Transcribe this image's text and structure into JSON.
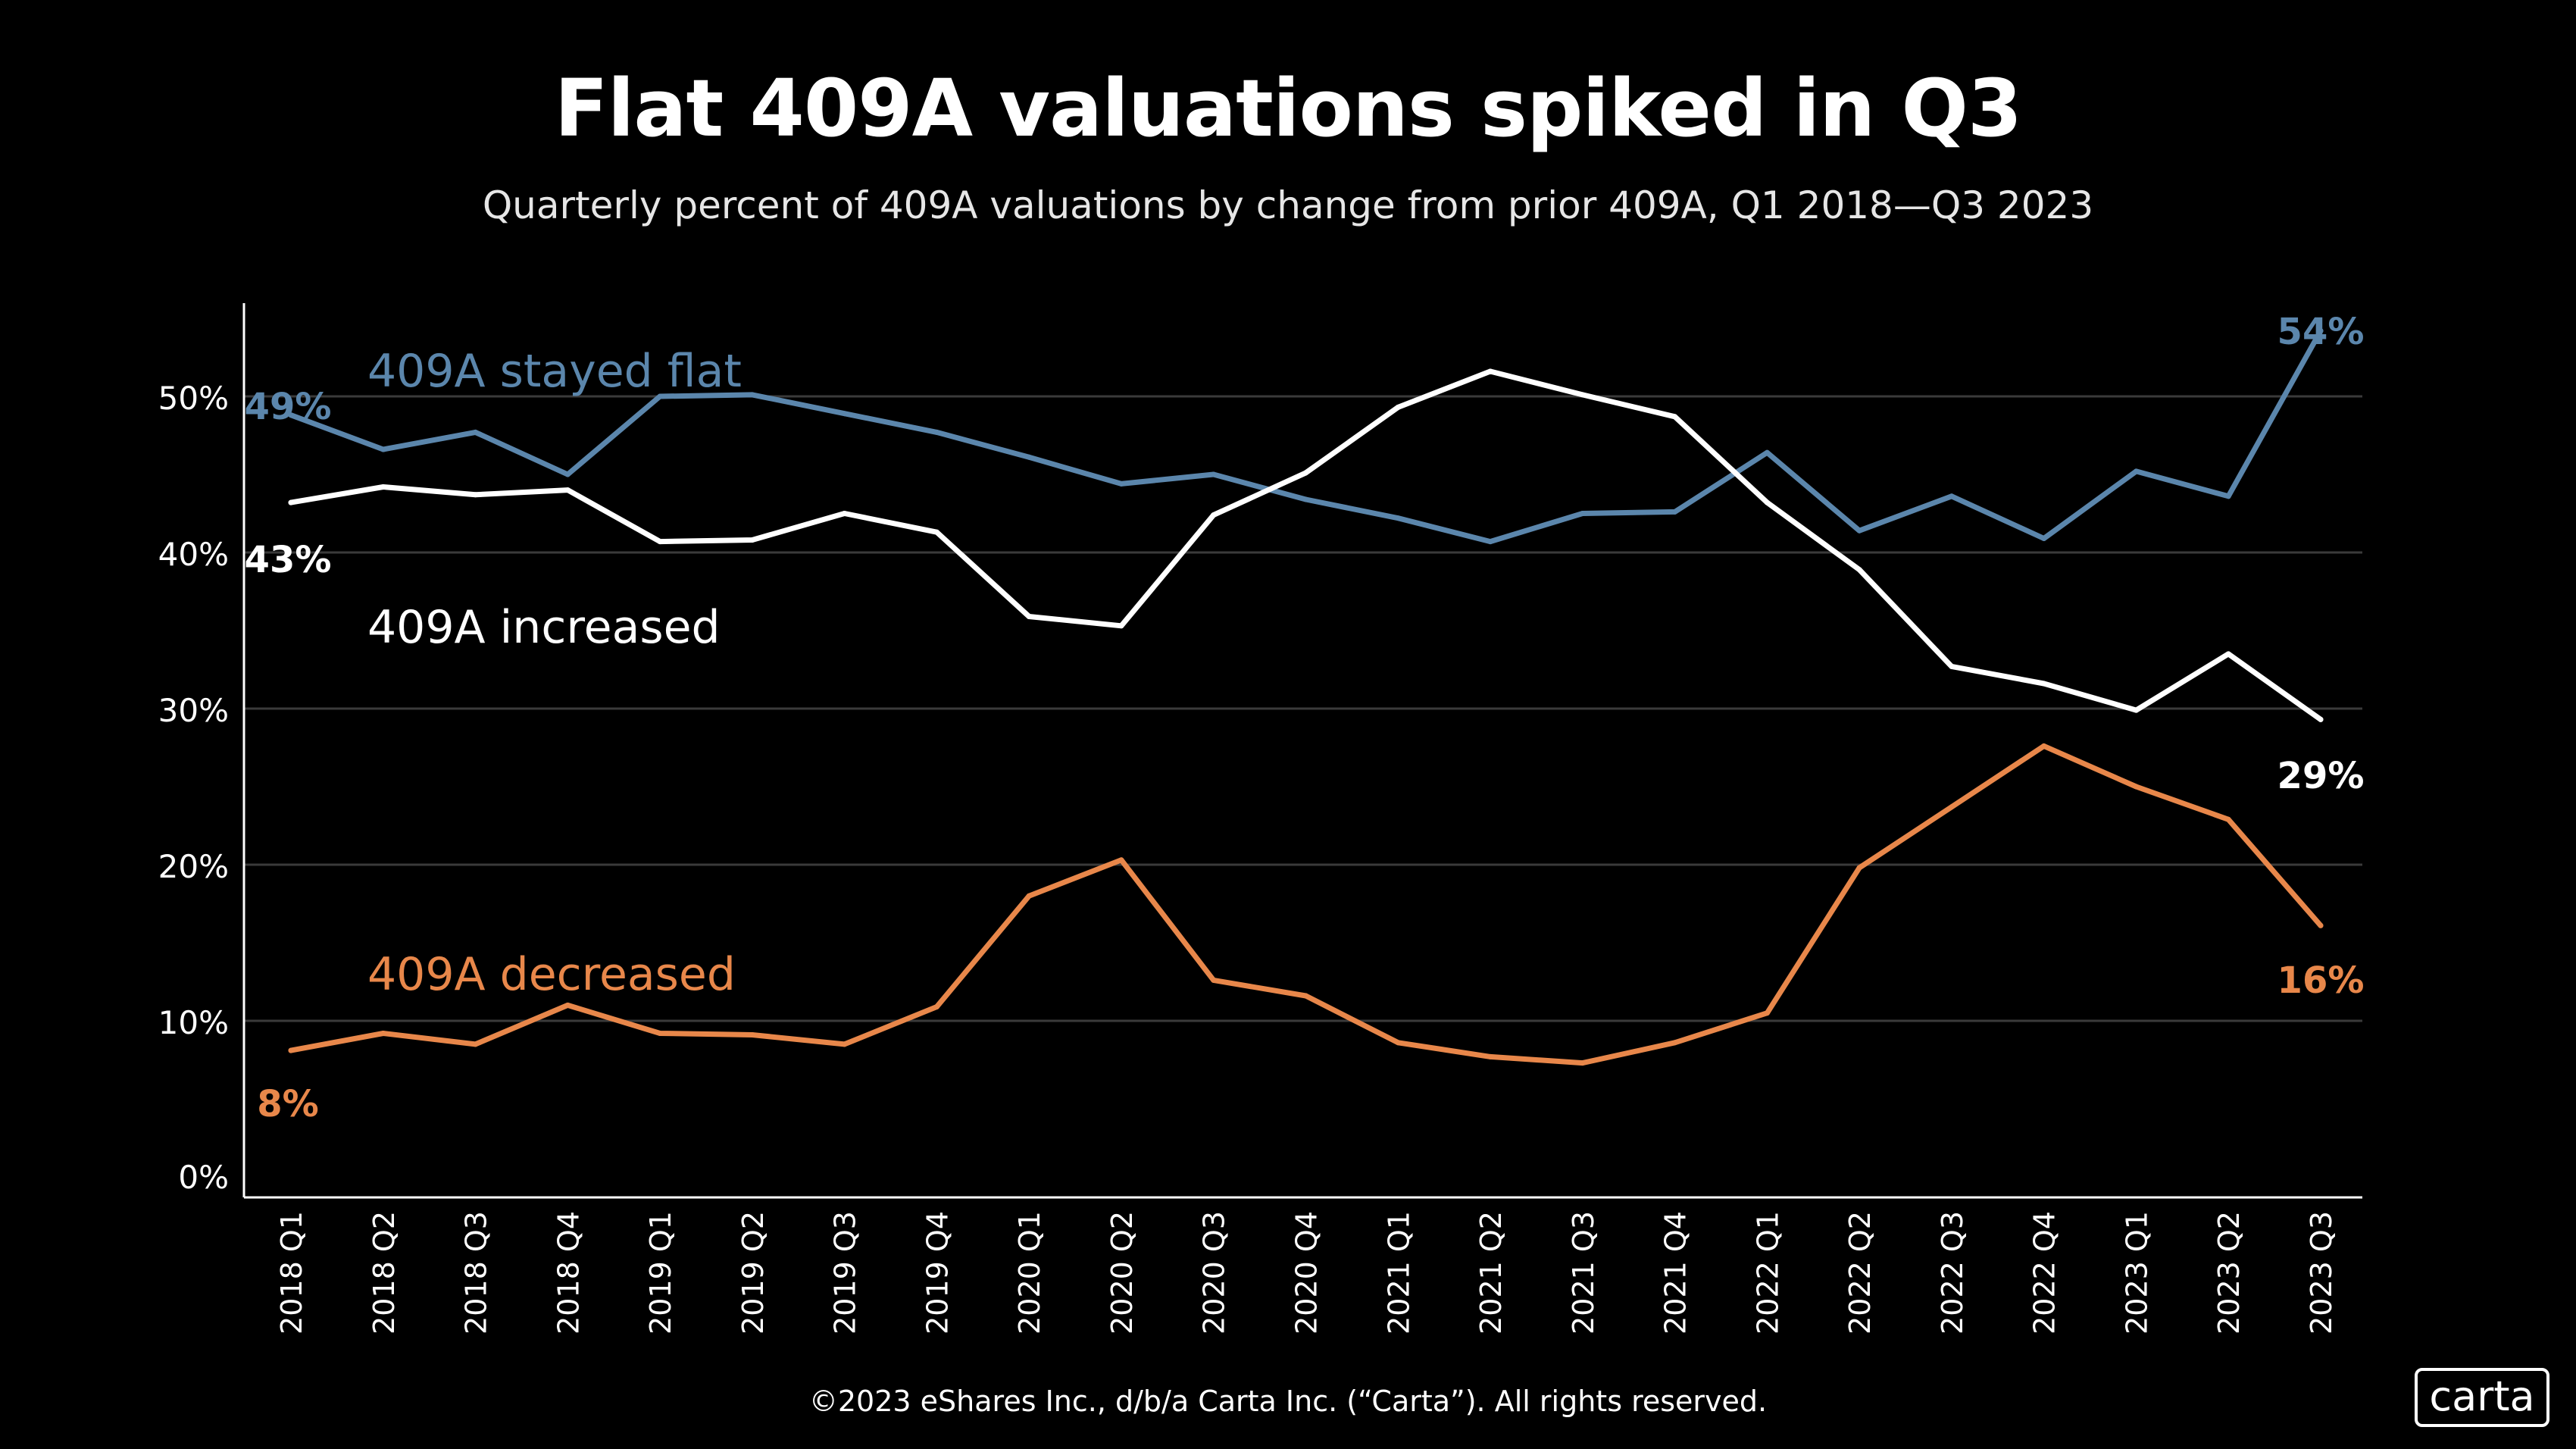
{
  "header": {
    "title": "Flat 409A valuations spiked in Q3",
    "subtitle": "Quarterly percent of 409A valuations by change from prior 409A, Q1 2018—Q3 2023"
  },
  "footer": {
    "copyright": "©2023 eShares Inc., d/b/a Carta Inc. (“Carta”). All rights reserved.",
    "logo_text": "carta"
  },
  "colors": {
    "background": "#000000",
    "flat": "#5b86ac",
    "increased": "#ffffff",
    "decreased": "#e8874a",
    "grid": "#3a3a3a",
    "axis": "#ffffff"
  },
  "chart_data": {
    "type": "line",
    "title": "Flat 409A valuations spiked in Q3",
    "subtitle": "Quarterly percent of 409A valuations by change from prior 409A, Q1 2018—Q3 2023",
    "xlabel": "",
    "ylabel": "",
    "ylim": [
      0,
      57
    ],
    "y_ticks": [
      0,
      10,
      20,
      30,
      40,
      50
    ],
    "y_tick_labels": [
      "0%",
      "10%",
      "20%",
      "30%",
      "40%",
      "50%"
    ],
    "grid": true,
    "categories": [
      "2018 Q1",
      "2018 Q2",
      "2018 Q3",
      "2018 Q4",
      "2019 Q1",
      "2019 Q2",
      "2019 Q3",
      "2019 Q4",
      "2020 Q1",
      "2020 Q2",
      "2020 Q3",
      "2020 Q4",
      "2021 Q1",
      "2021 Q2",
      "2021 Q3",
      "2021 Q4",
      "2022 Q1",
      "2022 Q2",
      "2022 Q3",
      "2022 Q4",
      "2023 Q1",
      "2023 Q2",
      "2023 Q3"
    ],
    "series": [
      {
        "key": "flat",
        "name": "409A stayed flat",
        "color": "#5b86ac",
        "values": [
          48.8,
          46.6,
          47.7,
          45.0,
          50.0,
          50.1,
          48.9,
          47.7,
          46.1,
          44.4,
          45.0,
          43.4,
          42.2,
          40.7,
          42.5,
          42.6,
          46.4,
          41.4,
          43.6,
          40.9,
          45.2,
          43.6,
          54.2
        ],
        "start_label": "49%",
        "end_label": "54%"
      },
      {
        "key": "increased",
        "name": "409A increased",
        "color": "#ffffff",
        "values": [
          43.2,
          44.2,
          43.7,
          44.0,
          40.7,
          40.8,
          42.5,
          41.3,
          35.9,
          35.3,
          42.4,
          45.1,
          49.3,
          51.6,
          50.1,
          48.7,
          43.2,
          38.9,
          32.7,
          31.6,
          29.9,
          33.5,
          29.3
        ],
        "start_label": "43%",
        "end_label": "29%"
      },
      {
        "key": "decreased",
        "name": "409A decreased",
        "color": "#e8874a",
        "values": [
          8.1,
          9.2,
          8.5,
          11.0,
          9.2,
          9.1,
          8.5,
          10.9,
          18.0,
          20.3,
          12.6,
          11.6,
          8.6,
          7.7,
          7.3,
          8.6,
          10.5,
          19.8,
          23.7,
          27.6,
          25.0,
          22.9,
          16.1
        ],
        "start_label": "8%",
        "end_label": "16%"
      }
    ]
  }
}
